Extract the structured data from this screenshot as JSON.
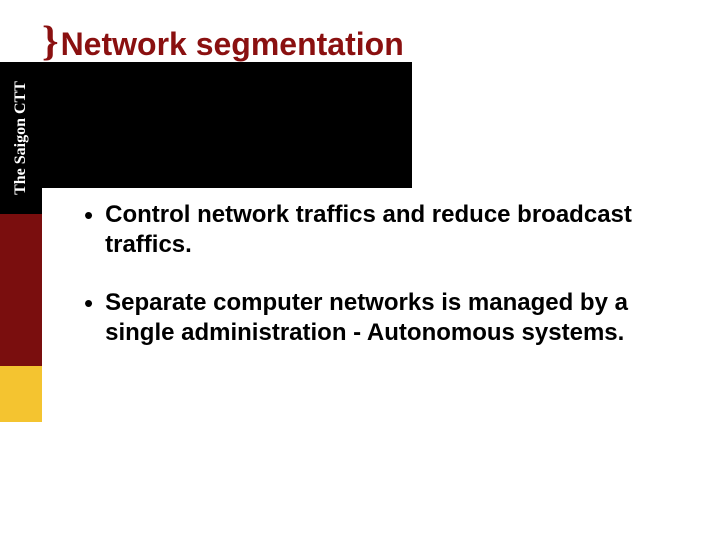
{
  "title": {
    "brace": "}",
    "text": "Network segmentation",
    "brace_color": "#8a1010",
    "text_color": "#8a1010"
  },
  "sidebar": {
    "vertical_label": "The Saigon CTT",
    "colors": {
      "black": "#000000",
      "maroon": "#7a0e0e",
      "yellow": "#f4c430",
      "white": "#ffffff"
    }
  },
  "black_band_color": "#000000",
  "bullets": [
    "Control network traffics and reduce broadcast traffics.",
    "Separate computer networks is managed by a single administration - Autonomous systems."
  ],
  "body_font_size_pt": 24,
  "title_font_size_pt": 32,
  "background_color": "#ffffff"
}
